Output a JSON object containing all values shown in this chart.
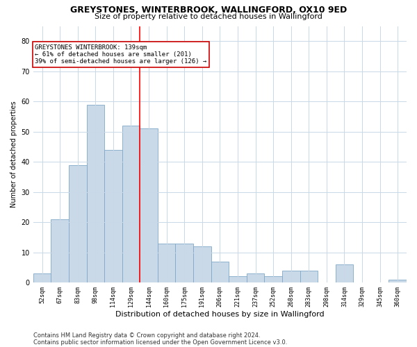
{
  "title": "GREYSTONES, WINTERBROOK, WALLINGFORD, OX10 9ED",
  "subtitle": "Size of property relative to detached houses in Wallingford",
  "xlabel": "Distribution of detached houses by size in Wallingford",
  "ylabel": "Number of detached properties",
  "bar_labels": [
    "52sqm",
    "67sqm",
    "83sqm",
    "98sqm",
    "114sqm",
    "129sqm",
    "144sqm",
    "160sqm",
    "175sqm",
    "191sqm",
    "206sqm",
    "221sqm",
    "237sqm",
    "252sqm",
    "268sqm",
    "283sqm",
    "298sqm",
    "314sqm",
    "329sqm",
    "345sqm",
    "360sqm"
  ],
  "bar_values": [
    3,
    21,
    39,
    59,
    44,
    52,
    51,
    13,
    13,
    12,
    7,
    2,
    3,
    2,
    4,
    4,
    0,
    6,
    0,
    0,
    1
  ],
  "bar_color": "#c9d9e8",
  "bar_edgecolor": "#7fa8c9",
  "vline_color": "red",
  "vline_pos": 5.5,
  "ylim": [
    0,
    85
  ],
  "yticks": [
    0,
    10,
    20,
    30,
    40,
    50,
    60,
    70,
    80
  ],
  "annotation_text": "GREYSTONES WINTERBROOK: 139sqm\n← 61% of detached houses are smaller (201)\n39% of semi-detached houses are larger (126) →",
  "annotation_box_color": "#ffffff",
  "annotation_box_edgecolor": "#cc0000",
  "footnote1": "Contains HM Land Registry data © Crown copyright and database right 2024.",
  "footnote2": "Contains public sector information licensed under the Open Government Licence v3.0.",
  "background_color": "#ffffff",
  "grid_color": "#c8d8e8",
  "title_fontsize": 9,
  "subtitle_fontsize": 8,
  "xlabel_fontsize": 8,
  "ylabel_fontsize": 7,
  "xtick_fontsize": 6,
  "ytick_fontsize": 7,
  "annotation_fontsize": 6.5,
  "footnote_fontsize": 6
}
